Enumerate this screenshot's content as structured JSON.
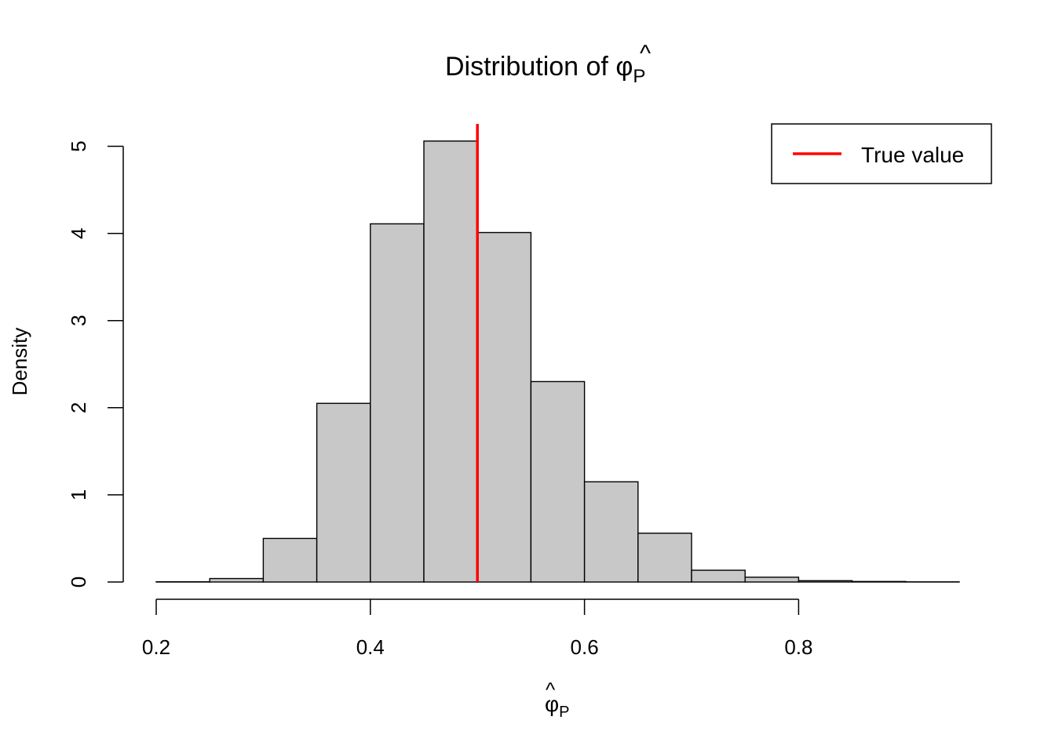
{
  "chart_data": {
    "type": "histogram",
    "title_prefix": "Distribution of ",
    "symbol": "φ",
    "hat": "^",
    "subscript": "P",
    "ylabel": "Density",
    "bin_edges": [
      0.2,
      0.25,
      0.3,
      0.35,
      0.4,
      0.45,
      0.5,
      0.55,
      0.6,
      0.65,
      0.7,
      0.75,
      0.8,
      0.85,
      0.9,
      0.95
    ],
    "densities": [
      0.003,
      0.04,
      0.5,
      2.05,
      4.11,
      5.06,
      4.01,
      2.3,
      1.15,
      0.56,
      0.135,
      0.055,
      0.015,
      0.006,
      0.002
    ],
    "x_ticks": [
      "0.2",
      "0.4",
      "0.6",
      "0.8"
    ],
    "x_tick_values": [
      0.2,
      0.4,
      0.6,
      0.8
    ],
    "y_ticks": [
      "0",
      "1",
      "2",
      "3",
      "4",
      "5"
    ],
    "y_tick_values": [
      0,
      1,
      2,
      3,
      4,
      5
    ],
    "xlim": [
      0.2,
      0.95
    ],
    "ylim": [
      0,
      5.25
    ],
    "bar_fill": "#c8c8c8",
    "true_value": 0.5,
    "true_value_color": "#ff0000",
    "legend": {
      "label": "True value",
      "position": "top-right"
    }
  }
}
